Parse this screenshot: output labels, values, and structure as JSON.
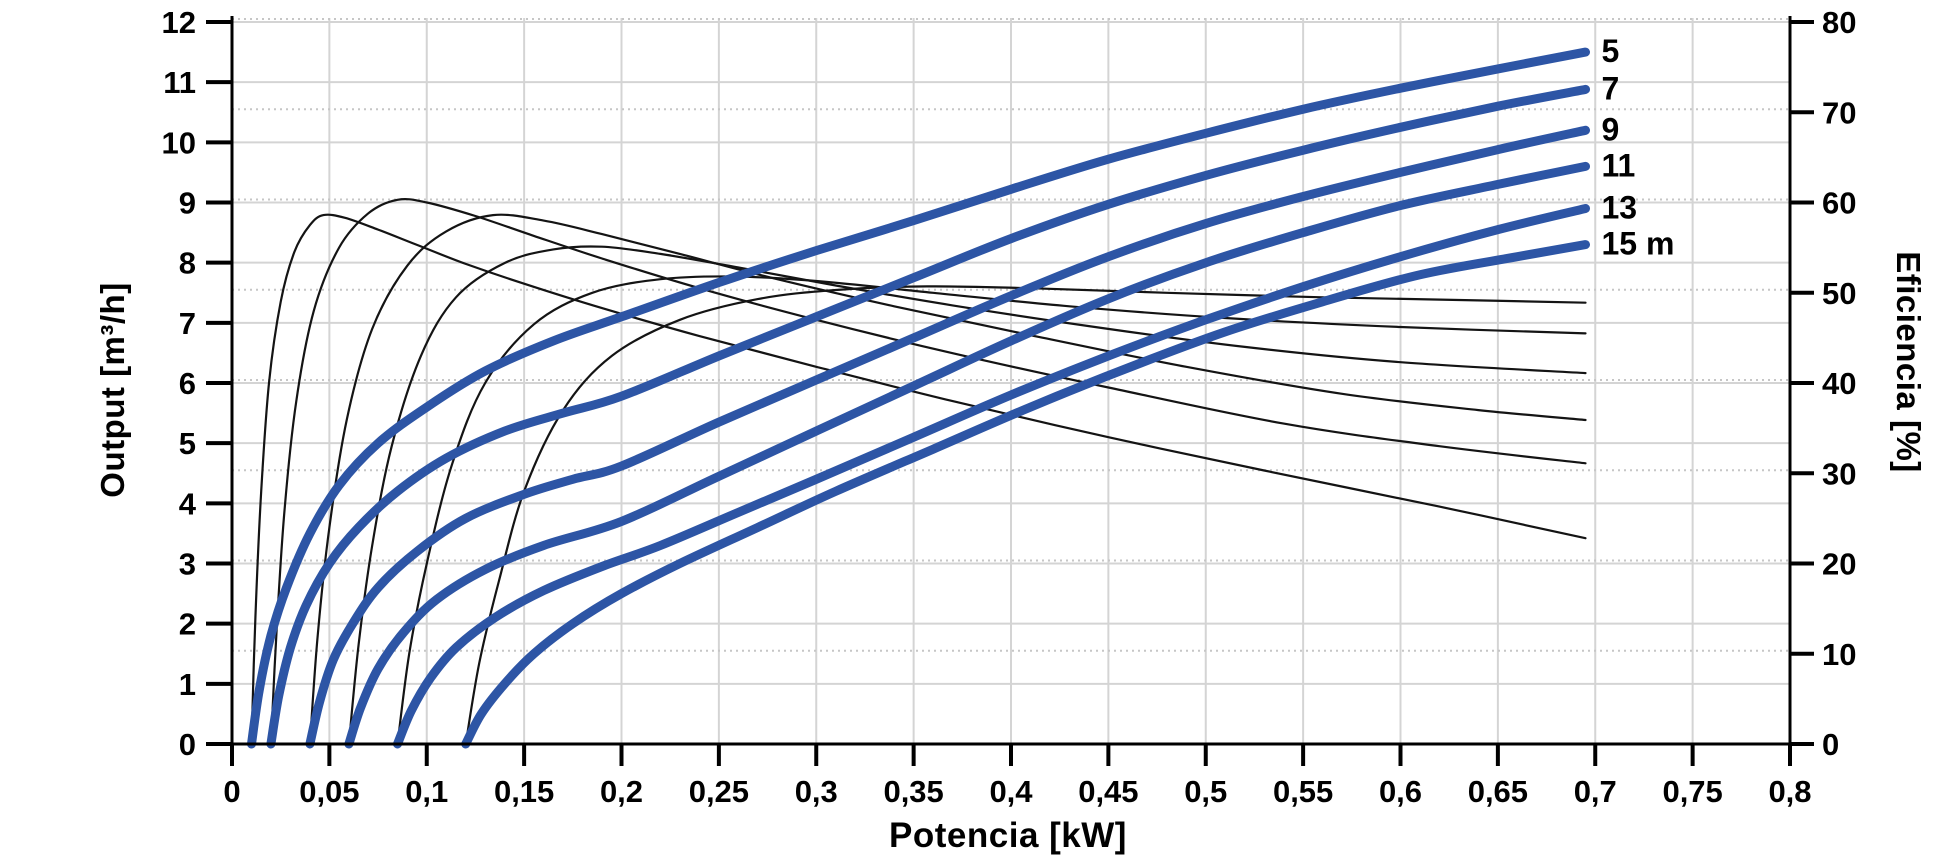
{
  "colors": {
    "curve_blue": "#2d55a5",
    "curve_black": "#141414",
    "grid_solid": "#d4d4d4",
    "grid_dotted": "#c6c6c6",
    "axis": "#000000",
    "background": "#ffffff",
    "text": "#000000"
  },
  "chart_data": {
    "type": "line",
    "description": "Pump performance: Output and Eficiencia vs Potencia for heads 5-15 m",
    "x_axis": {
      "label": "Potencia [kW]",
      "min": 0,
      "max": 0.8,
      "tick_step": 0.05,
      "tick_labels": [
        "0",
        "0,05",
        "0,1",
        "0,15",
        "0,2",
        "0,25",
        "0,3",
        "0,35",
        "0,4",
        "0,45",
        "0,5",
        "0,55",
        "0,6",
        "0,65",
        "0,7",
        "0,75",
        "0,8"
      ]
    },
    "y_axis_left": {
      "label": "Output [m³/h]",
      "min": 0,
      "max": 12,
      "tick_step": 1,
      "tick_labels": [
        "0",
        "1",
        "2",
        "3",
        "4",
        "5",
        "6",
        "7",
        "8",
        "9",
        "10",
        "11",
        "12"
      ]
    },
    "y_axis_right": {
      "label": "Eficiencia [%]",
      "min": 0,
      "max": 80,
      "tick_step": 10,
      "tick_labels": [
        "0",
        "10",
        "20",
        "30",
        "40",
        "50",
        "60",
        "70",
        "80"
      ]
    },
    "head_values_m": [
      5,
      7,
      9,
      11,
      13,
      15
    ],
    "curve_end_labels": [
      "5",
      "7",
      "9",
      "11",
      "13",
      "15 m"
    ],
    "output_series": [
      {
        "name": "5",
        "head_m": 5,
        "axis": "left",
        "points": [
          [
            0.01,
            0
          ],
          [
            0.014,
            0.9
          ],
          [
            0.02,
            1.8
          ],
          [
            0.028,
            2.6
          ],
          [
            0.04,
            3.5
          ],
          [
            0.055,
            4.3
          ],
          [
            0.075,
            5.0
          ],
          [
            0.1,
            5.6
          ],
          [
            0.13,
            6.2
          ],
          [
            0.165,
            6.7
          ],
          [
            0.2,
            7.1
          ],
          [
            0.25,
            7.67
          ],
          [
            0.3,
            8.2
          ],
          [
            0.35,
            8.7
          ],
          [
            0.4,
            9.22
          ],
          [
            0.45,
            9.72
          ],
          [
            0.5,
            10.15
          ],
          [
            0.55,
            10.55
          ],
          [
            0.6,
            10.9
          ],
          [
            0.65,
            11.22
          ],
          [
            0.695,
            11.5
          ]
        ]
      },
      {
        "name": "7",
        "head_m": 7,
        "axis": "left",
        "points": [
          [
            0.02,
            0
          ],
          [
            0.024,
            0.8
          ],
          [
            0.03,
            1.6
          ],
          [
            0.038,
            2.3
          ],
          [
            0.05,
            3.0
          ],
          [
            0.065,
            3.6
          ],
          [
            0.085,
            4.2
          ],
          [
            0.11,
            4.75
          ],
          [
            0.14,
            5.2
          ],
          [
            0.17,
            5.5
          ],
          [
            0.2,
            5.78
          ],
          [
            0.25,
            6.45
          ],
          [
            0.3,
            7.1
          ],
          [
            0.35,
            7.75
          ],
          [
            0.4,
            8.4
          ],
          [
            0.45,
            8.97
          ],
          [
            0.5,
            9.45
          ],
          [
            0.55,
            9.87
          ],
          [
            0.6,
            10.25
          ],
          [
            0.65,
            10.6
          ],
          [
            0.695,
            10.88
          ]
        ]
      },
      {
        "name": "9",
        "head_m": 9,
        "axis": "left",
        "points": [
          [
            0.04,
            0
          ],
          [
            0.045,
            0.7
          ],
          [
            0.052,
            1.4
          ],
          [
            0.062,
            2.0
          ],
          [
            0.075,
            2.6
          ],
          [
            0.095,
            3.2
          ],
          [
            0.12,
            3.75
          ],
          [
            0.15,
            4.15
          ],
          [
            0.175,
            4.4
          ],
          [
            0.2,
            4.62
          ],
          [
            0.25,
            5.35
          ],
          [
            0.3,
            6.05
          ],
          [
            0.35,
            6.75
          ],
          [
            0.4,
            7.45
          ],
          [
            0.45,
            8.1
          ],
          [
            0.5,
            8.65
          ],
          [
            0.55,
            9.1
          ],
          [
            0.6,
            9.5
          ],
          [
            0.65,
            9.88
          ],
          [
            0.695,
            10.2
          ]
        ]
      },
      {
        "name": "11",
        "head_m": 11,
        "axis": "left",
        "points": [
          [
            0.06,
            0
          ],
          [
            0.066,
            0.6
          ],
          [
            0.075,
            1.25
          ],
          [
            0.088,
            1.85
          ],
          [
            0.105,
            2.4
          ],
          [
            0.13,
            2.9
          ],
          [
            0.16,
            3.3
          ],
          [
            0.2,
            3.7
          ],
          [
            0.25,
            4.45
          ],
          [
            0.3,
            5.2
          ],
          [
            0.35,
            5.95
          ],
          [
            0.4,
            6.7
          ],
          [
            0.45,
            7.4
          ],
          [
            0.5,
            8.0
          ],
          [
            0.55,
            8.5
          ],
          [
            0.6,
            8.95
          ],
          [
            0.65,
            9.3
          ],
          [
            0.695,
            9.6
          ]
        ]
      },
      {
        "name": "13",
        "head_m": 13,
        "axis": "left",
        "points": [
          [
            0.085,
            0
          ],
          [
            0.092,
            0.55
          ],
          [
            0.102,
            1.1
          ],
          [
            0.115,
            1.6
          ],
          [
            0.135,
            2.1
          ],
          [
            0.16,
            2.55
          ],
          [
            0.19,
            2.95
          ],
          [
            0.22,
            3.3
          ],
          [
            0.26,
            3.85
          ],
          [
            0.3,
            4.4
          ],
          [
            0.35,
            5.1
          ],
          [
            0.4,
            5.8
          ],
          [
            0.45,
            6.45
          ],
          [
            0.5,
            7.05
          ],
          [
            0.55,
            7.6
          ],
          [
            0.6,
            8.1
          ],
          [
            0.65,
            8.55
          ],
          [
            0.695,
            8.9
          ]
        ]
      },
      {
        "name": "15 m",
        "head_m": 15,
        "axis": "left",
        "points": [
          [
            0.12,
            0
          ],
          [
            0.128,
            0.5
          ],
          [
            0.14,
            1.0
          ],
          [
            0.155,
            1.5
          ],
          [
            0.175,
            2.0
          ],
          [
            0.2,
            2.5
          ],
          [
            0.23,
            3.0
          ],
          [
            0.27,
            3.6
          ],
          [
            0.31,
            4.2
          ],
          [
            0.36,
            4.9
          ],
          [
            0.41,
            5.6
          ],
          [
            0.46,
            6.25
          ],
          [
            0.51,
            6.85
          ],
          [
            0.56,
            7.35
          ],
          [
            0.61,
            7.8
          ],
          [
            0.66,
            8.1
          ],
          [
            0.695,
            8.3
          ]
        ]
      }
    ],
    "efficiency_series": [
      {
        "name": "eff-5",
        "head_m": 5,
        "axis": "right",
        "points": [
          [
            0.01,
            0
          ],
          [
            0.012,
            14
          ],
          [
            0.015,
            28
          ],
          [
            0.019,
            40
          ],
          [
            0.025,
            49
          ],
          [
            0.032,
            54.5
          ],
          [
            0.04,
            57.5
          ],
          [
            0.047,
            58.6
          ],
          [
            0.058,
            58.3
          ],
          [
            0.075,
            57
          ],
          [
            0.095,
            55.3
          ],
          [
            0.12,
            53.2
          ],
          [
            0.15,
            51
          ],
          [
            0.19,
            48.3
          ],
          [
            0.24,
            45.2
          ],
          [
            0.3,
            41.8
          ],
          [
            0.37,
            38
          ],
          [
            0.45,
            34
          ],
          [
            0.53,
            30.3
          ],
          [
            0.62,
            26.3
          ],
          [
            0.695,
            22.8
          ]
        ]
      },
      {
        "name": "eff-7",
        "head_m": 7,
        "axis": "right",
        "points": [
          [
            0.02,
            0
          ],
          [
            0.023,
            13
          ],
          [
            0.027,
            26
          ],
          [
            0.033,
            38
          ],
          [
            0.042,
            48
          ],
          [
            0.055,
            55
          ],
          [
            0.07,
            58.8
          ],
          [
            0.085,
            60.3
          ],
          [
            0.1,
            60
          ],
          [
            0.125,
            58.5
          ],
          [
            0.155,
            56.3
          ],
          [
            0.19,
            53.8
          ],
          [
            0.24,
            50.5
          ],
          [
            0.3,
            47
          ],
          [
            0.37,
            43.3
          ],
          [
            0.45,
            39.5
          ],
          [
            0.54,
            35.5
          ],
          [
            0.62,
            33
          ],
          [
            0.695,
            31.1
          ]
        ]
      },
      {
        "name": "eff-9",
        "head_m": 9,
        "axis": "right",
        "points": [
          [
            0.04,
            0
          ],
          [
            0.044,
            12
          ],
          [
            0.05,
            24
          ],
          [
            0.059,
            36
          ],
          [
            0.072,
            46
          ],
          [
            0.09,
            53
          ],
          [
            0.11,
            56.8
          ],
          [
            0.134,
            58.6
          ],
          [
            0.16,
            58
          ],
          [
            0.19,
            56.5
          ],
          [
            0.23,
            54.3
          ],
          [
            0.28,
            51.5
          ],
          [
            0.34,
            48.5
          ],
          [
            0.41,
            45.3
          ],
          [
            0.49,
            41.8
          ],
          [
            0.57,
            38.8
          ],
          [
            0.64,
            37
          ],
          [
            0.695,
            35.9
          ]
        ]
      },
      {
        "name": "eff-11",
        "head_m": 11,
        "axis": "right",
        "points": [
          [
            0.06,
            0
          ],
          [
            0.065,
            11
          ],
          [
            0.072,
            22
          ],
          [
            0.082,
            33
          ],
          [
            0.097,
            43
          ],
          [
            0.115,
            49.5
          ],
          [
            0.14,
            53.3
          ],
          [
            0.165,
            54.8
          ],
          [
            0.19,
            55.1
          ],
          [
            0.22,
            54.3
          ],
          [
            0.26,
            52.8
          ],
          [
            0.31,
            50.8
          ],
          [
            0.37,
            48.6
          ],
          [
            0.44,
            46.3
          ],
          [
            0.52,
            44
          ],
          [
            0.6,
            42.3
          ],
          [
            0.695,
            41.1
          ]
        ]
      },
      {
        "name": "eff-13",
        "head_m": 13,
        "axis": "right",
        "points": [
          [
            0.085,
            0
          ],
          [
            0.091,
            10
          ],
          [
            0.1,
            20
          ],
          [
            0.113,
            31
          ],
          [
            0.13,
            40
          ],
          [
            0.155,
            46.5
          ],
          [
            0.185,
            50
          ],
          [
            0.22,
            51.5
          ],
          [
            0.258,
            51.8
          ],
          [
            0.3,
            51.3
          ],
          [
            0.36,
            50
          ],
          [
            0.43,
            48.5
          ],
          [
            0.51,
            47.2
          ],
          [
            0.6,
            46.2
          ],
          [
            0.695,
            45.5
          ]
        ]
      },
      {
        "name": "eff-15",
        "head_m": 15,
        "axis": "right",
        "points": [
          [
            0.12,
            0
          ],
          [
            0.127,
            9
          ],
          [
            0.137,
            18
          ],
          [
            0.15,
            28
          ],
          [
            0.17,
            37
          ],
          [
            0.195,
            43
          ],
          [
            0.23,
            47
          ],
          [
            0.27,
            49.3
          ],
          [
            0.31,
            50.3
          ],
          [
            0.357,
            50.7
          ],
          [
            0.41,
            50.5
          ],
          [
            0.48,
            50
          ],
          [
            0.56,
            49.5
          ],
          [
            0.63,
            49.2
          ],
          [
            0.695,
            48.9
          ]
        ]
      }
    ],
    "grid": {
      "vertical_solid_every_kW": 0.05,
      "horizontal_solid_every_left_unit": 1,
      "horizontal_dotted_every_right_pct": 10,
      "legend_position": "curve-end-labels-right"
    }
  }
}
